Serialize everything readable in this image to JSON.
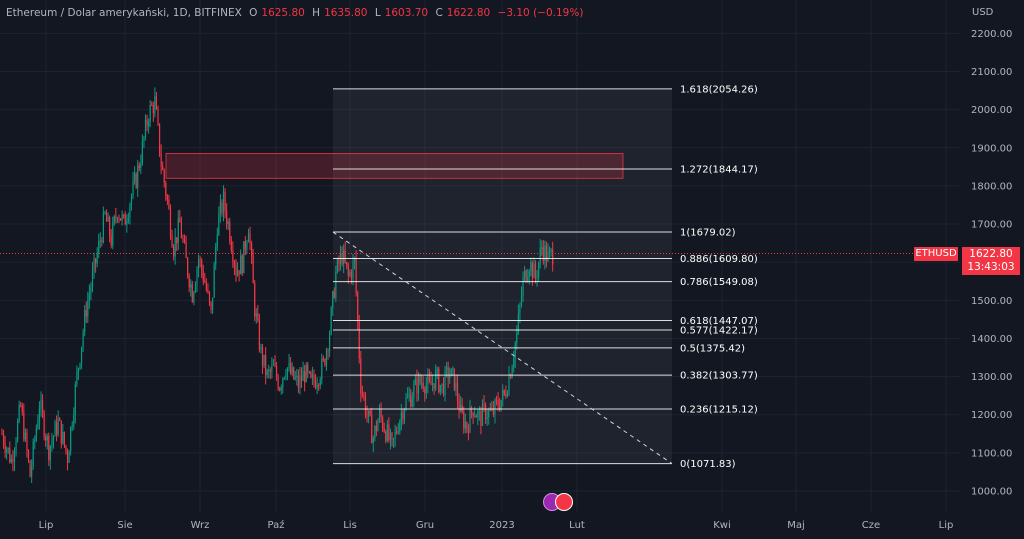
{
  "header": {
    "title": "Ethereum / Dolar amerykański, 1D, BITFINEX",
    "open_label": "O",
    "open": "1625.80",
    "high_label": "H",
    "high": "1635.80",
    "low_label": "L",
    "low": "1603.70",
    "close_label": "C",
    "close": "1622.80",
    "change": "−3.10 (−0.19%)"
  },
  "currency": "USD",
  "price_badge": {
    "ticker": "ETHUSD",
    "price": "1622.80",
    "countdown": "13:43:03"
  },
  "colors": {
    "up": "#089981",
    "down": "#f23645",
    "background": "#131722",
    "grid": "#1f2330",
    "fib_line": "#ffffff"
  },
  "chart_data": {
    "type": "candlestick",
    "title": "Ethereum / Dolar amerykański, 1D, BITFINEX",
    "y_axis": {
      "ylim": [
        960,
        2260
      ],
      "ticks": [
        2200,
        2100,
        2000,
        1900,
        1800,
        1700,
        1600,
        1500,
        1400,
        1300,
        1200,
        1100,
        1000
      ],
      "tick_labels": [
        "2200.00",
        "2100.00",
        "2000.00",
        "1900.00",
        "1800.00",
        "1700.00",
        "1600.00",
        "1500.00",
        "1400.00",
        "1300.00",
        "1200.00",
        "1100.00",
        "1000.00"
      ],
      "position": "right"
    },
    "x_axis": {
      "tick_labels": [
        "Lip",
        "Sie",
        "Wrz",
        "Paź",
        "Lis",
        "Gru",
        "2023",
        "Lut",
        "Kwi",
        "Maj",
        "Cze",
        "Lip"
      ]
    },
    "price_path": [
      [
        0,
        1150
      ],
      [
        6,
        1080
      ],
      [
        12,
        1220
      ],
      [
        18,
        1040
      ],
      [
        24,
        1230
      ],
      [
        30,
        1110
      ],
      [
        36,
        1180
      ],
      [
        42,
        1090
      ],
      [
        48,
        1300
      ],
      [
        54,
        1480
      ],
      [
        58,
        1560
      ],
      [
        62,
        1640
      ],
      [
        66,
        1720
      ],
      [
        70,
        1660
      ],
      [
        74,
        1740
      ],
      [
        78,
        1700
      ],
      [
        82,
        1760
      ],
      [
        86,
        1820
      ],
      [
        90,
        1900
      ],
      [
        94,
        1990
      ],
      [
        98,
        2020
      ],
      [
        102,
        1860
      ],
      [
        106,
        1760
      ],
      [
        110,
        1640
      ],
      [
        114,
        1700
      ],
      [
        118,
        1600
      ],
      [
        122,
        1520
      ],
      [
        126,
        1610
      ],
      [
        130,
        1550
      ],
      [
        134,
        1460
      ],
      [
        138,
        1700
      ],
      [
        142,
        1760
      ],
      [
        146,
        1680
      ],
      [
        150,
        1580
      ],
      [
        154,
        1600
      ],
      [
        158,
        1700
      ],
      [
        162,
        1480
      ],
      [
        166,
        1360
      ],
      [
        170,
        1300
      ],
      [
        174,
        1320
      ],
      [
        178,
        1280
      ],
      [
        182,
        1330
      ],
      [
        186,
        1300
      ],
      [
        190,
        1280
      ],
      [
        194,
        1310
      ],
      [
        198,
        1280
      ],
      [
        202,
        1300
      ],
      [
        206,
        1330
      ],
      [
        210,
        1420
      ],
      [
        214,
        1570
      ],
      [
        218,
        1620
      ],
      [
        222,
        1560
      ],
      [
        226,
        1600
      ],
      [
        230,
        1280
      ],
      [
        234,
        1200
      ],
      [
        238,
        1140
      ],
      [
        242,
        1200
      ],
      [
        246,
        1160
      ],
      [
        250,
        1110
      ],
      [
        254,
        1180
      ],
      [
        258,
        1230
      ],
      [
        262,
        1250
      ],
      [
        266,
        1280
      ],
      [
        270,
        1290
      ],
      [
        274,
        1270
      ],
      [
        278,
        1300
      ],
      [
        282,
        1270
      ],
      [
        286,
        1310
      ],
      [
        290,
        1290
      ],
      [
        294,
        1200
      ],
      [
        298,
        1170
      ],
      [
        302,
        1220
      ],
      [
        306,
        1190
      ],
      [
        310,
        1210
      ],
      [
        314,
        1200
      ],
      [
        318,
        1230
      ],
      [
        322,
        1250
      ],
      [
        326,
        1320
      ],
      [
        330,
        1410
      ],
      [
        334,
        1550
      ],
      [
        338,
        1600
      ],
      [
        342,
        1560
      ],
      [
        346,
        1640
      ],
      [
        350,
        1610
      ],
      [
        353,
        1622.8
      ]
    ],
    "current_price": 1622.8,
    "fibonacci_retracement": {
      "levels": [
        {
          "label": "1.618(2054.26)",
          "ratio": 1.618,
          "price": 2054.26
        },
        {
          "label": "1.272(1844.17)",
          "ratio": 1.272,
          "price": 1844.17
        },
        {
          "label": "1(1679.02)",
          "ratio": 1,
          "price": 1679.02
        },
        {
          "label": "0.886(1609.80)",
          "ratio": 0.886,
          "price": 1609.8
        },
        {
          "label": "0.786(1549.08)",
          "ratio": 0.786,
          "price": 1549.08
        },
        {
          "label": "0.618(1447.07)",
          "ratio": 0.618,
          "price": 1447.07
        },
        {
          "label": "0.577(1422.17)",
          "ratio": 0.577,
          "price": 1422.17
        },
        {
          "label": "0.5(1375.42)",
          "ratio": 0.5,
          "price": 1375.42
        },
        {
          "label": "0.382(1303.77)",
          "ratio": 0.382,
          "price": 1303.77
        },
        {
          "label": "0.236(1215.12)",
          "ratio": 0.236,
          "price": 1215.12
        },
        {
          "label": "0(1071.83)",
          "ratio": 0,
          "price": 1071.83
        }
      ]
    },
    "resistance_zone": {
      "price_low": 1820,
      "price_high": 1885,
      "color": "#f23645"
    },
    "trendline": {
      "from_price": 1679.02,
      "to_price": 1071.83,
      "style": "dashed"
    },
    "grid": true,
    "legend": "top-left"
  }
}
